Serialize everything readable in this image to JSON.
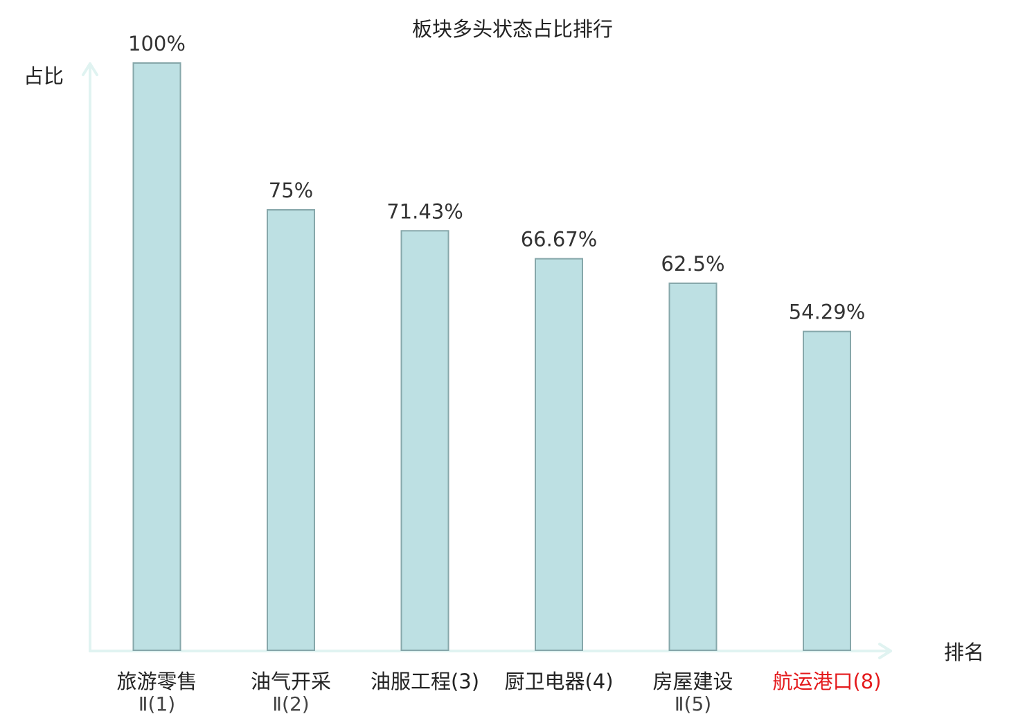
{
  "chart_data": {
    "type": "bar",
    "title": "板块多头状态占比排行",
    "ylabel": "占比",
    "xlabel": "排名",
    "ylim": [
      0,
      100
    ],
    "grid": false,
    "categories": [
      {
        "name_line1": "旅游零售",
        "name_line2": "Ⅱ(1)",
        "highlight": false
      },
      {
        "name_line1": "油气开采",
        "name_line2": "Ⅱ(2)",
        "highlight": false
      },
      {
        "name_line1": "油服工程(3)",
        "name_line2": "",
        "highlight": false
      },
      {
        "name_line1": "厨卫电器(4)",
        "name_line2": "",
        "highlight": false
      },
      {
        "name_line1": "房屋建设",
        "name_line2": "Ⅱ(5)",
        "highlight": false
      },
      {
        "name_line1": "航运港口(8)",
        "name_line2": "",
        "highlight": true
      }
    ],
    "values": [
      100,
      75,
      71.43,
      66.67,
      62.5,
      54.29
    ],
    "value_labels": [
      "100%",
      "75%",
      "71.43%",
      "66.67%",
      "62.5%",
      "54.29%"
    ]
  },
  "colors": {
    "bar_fill": "#bde0e3",
    "bar_stroke": "#86a7aa",
    "axis": "#e0f3f1",
    "text": "#222222",
    "value_text": "#333333",
    "highlight_text": "#e41a1c",
    "sub_text": "#444444"
  }
}
